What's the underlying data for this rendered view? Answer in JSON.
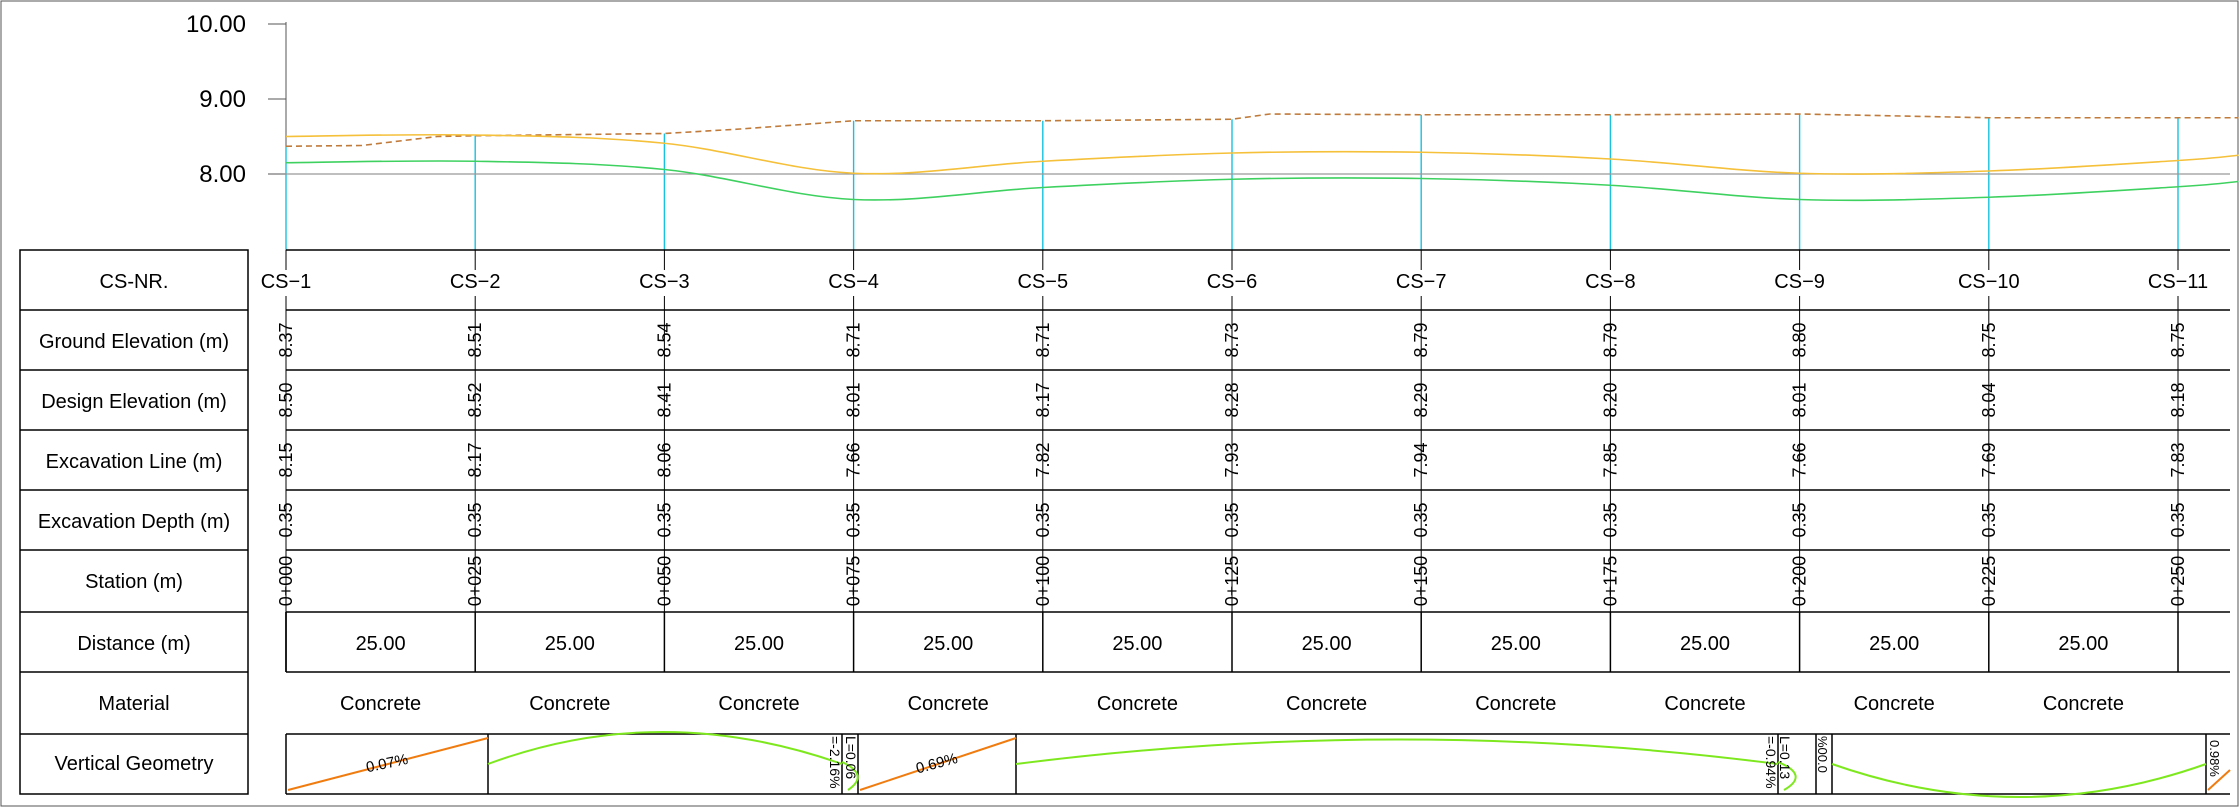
{
  "chart_data": {
    "type": "line",
    "y_ticks": [
      "10.00",
      "9.00",
      "8.00"
    ],
    "ylim": [
      7.0,
      10.0
    ],
    "series": [
      {
        "key": "ground",
        "color": "#c07a3a",
        "style": "dashed",
        "x": [
          0,
          10,
          20,
          25,
          50,
          60,
          75,
          100,
          125,
          130,
          150,
          175,
          200,
          225,
          250,
          258
        ],
        "y": [
          8.37,
          8.38,
          8.5,
          8.51,
          8.54,
          8.6,
          8.71,
          8.71,
          8.73,
          8.8,
          8.79,
          8.79,
          8.8,
          8.75,
          8.75,
          8.75
        ]
      },
      {
        "key": "design",
        "color": "#f5c03a",
        "style": "solid",
        "x": [
          0,
          25,
          50,
          75,
          100,
          125,
          150,
          175,
          200,
          225,
          250,
          258
        ],
        "y": [
          8.5,
          8.52,
          8.41,
          8.01,
          8.17,
          8.28,
          8.29,
          8.2,
          8.01,
          8.04,
          8.18,
          8.25
        ]
      },
      {
        "key": "excavation",
        "color": "#3ed160",
        "style": "solid",
        "x": [
          0,
          25,
          50,
          75,
          100,
          125,
          150,
          175,
          200,
          225,
          250,
          258
        ],
        "y": [
          8.15,
          8.17,
          8.06,
          7.66,
          7.82,
          7.93,
          7.94,
          7.85,
          7.66,
          7.69,
          7.83,
          7.9
        ]
      }
    ],
    "reference_line": 8.0
  },
  "table": {
    "row_labels": {
      "cs_nr": "CS-NR.",
      "ground": "Ground Elevation (m)",
      "design": "Design Elevation (m)",
      "excavation_line": "Excavation Line (m)",
      "excavation_depth": "Excavation Depth (m)",
      "station": "Station (m)",
      "distance": "Distance (m)",
      "material": "Material",
      "vertical_geometry": "Vertical Geometry"
    },
    "cross_sections": [
      {
        "cs": "CS−1",
        "ground": "8.37",
        "design": "8.50",
        "excavation_line": "8.15",
        "excavation_depth": "0.35",
        "station": "0+000"
      },
      {
        "cs": "CS−2",
        "ground": "8.51",
        "design": "8.52",
        "excavation_line": "8.17",
        "excavation_depth": "0.35",
        "station": "0+025"
      },
      {
        "cs": "CS−3",
        "ground": "8.54",
        "design": "8.41",
        "excavation_line": "8.06",
        "excavation_depth": "0.35",
        "station": "0+050"
      },
      {
        "cs": "CS−4",
        "ground": "8.71",
        "design": "8.01",
        "excavation_line": "7.66",
        "excavation_depth": "0.35",
        "station": "0+075"
      },
      {
        "cs": "CS−5",
        "ground": "8.71",
        "design": "8.17",
        "excavation_line": "7.82",
        "excavation_depth": "0.35",
        "station": "0+100"
      },
      {
        "cs": "CS−6",
        "ground": "8.73",
        "design": "8.28",
        "excavation_line": "7.93",
        "excavation_depth": "0.35",
        "station": "0+125"
      },
      {
        "cs": "CS−7",
        "ground": "8.79",
        "design": "8.29",
        "excavation_line": "7.94",
        "excavation_depth": "0.35",
        "station": "0+150"
      },
      {
        "cs": "CS−8",
        "ground": "8.79",
        "design": "8.20",
        "excavation_line": "7.85",
        "excavation_depth": "0.35",
        "station": "0+175"
      },
      {
        "cs": "CS−9",
        "ground": "8.80",
        "design": "8.01",
        "excavation_line": "7.66",
        "excavation_depth": "0.35",
        "station": "0+200"
      },
      {
        "cs": "CS−10",
        "ground": "8.75",
        "design": "8.04",
        "excavation_line": "7.69",
        "excavation_depth": "0.35",
        "station": "0+225"
      },
      {
        "cs": "CS−11",
        "ground": "8.75",
        "design": "8.18",
        "excavation_line": "7.83",
        "excavation_depth": "0.35",
        "station": "0+250"
      }
    ],
    "distances": [
      "25.00",
      "25.00",
      "25.00",
      "25.00",
      "25.00",
      "25.00",
      "25.00",
      "25.00",
      "25.00",
      "25.00"
    ],
    "materials": [
      "Concrete",
      "Concrete",
      "Concrete",
      "Concrete",
      "Concrete",
      "Concrete",
      "Concrete",
      "Concrete",
      "Concrete",
      "Concrete"
    ]
  },
  "vertical_geometry": {
    "grade_1": "0.07%",
    "grade_2": "0.69%",
    "curve_1_grade": "=-2.16%",
    "curve_1_length": "L=0.06",
    "curve_2_grade": "=-0.94%",
    "curve_2_length": "L=0.13",
    "curve_2_percent": "%00.0",
    "end_grade": "0.98%",
    "tangent_color": "#f07c10",
    "curve_color": "#7ee81e"
  },
  "colors": {
    "station_line": "#17c2e0",
    "grid_line": "#000000",
    "reference_line": "#999999"
  }
}
